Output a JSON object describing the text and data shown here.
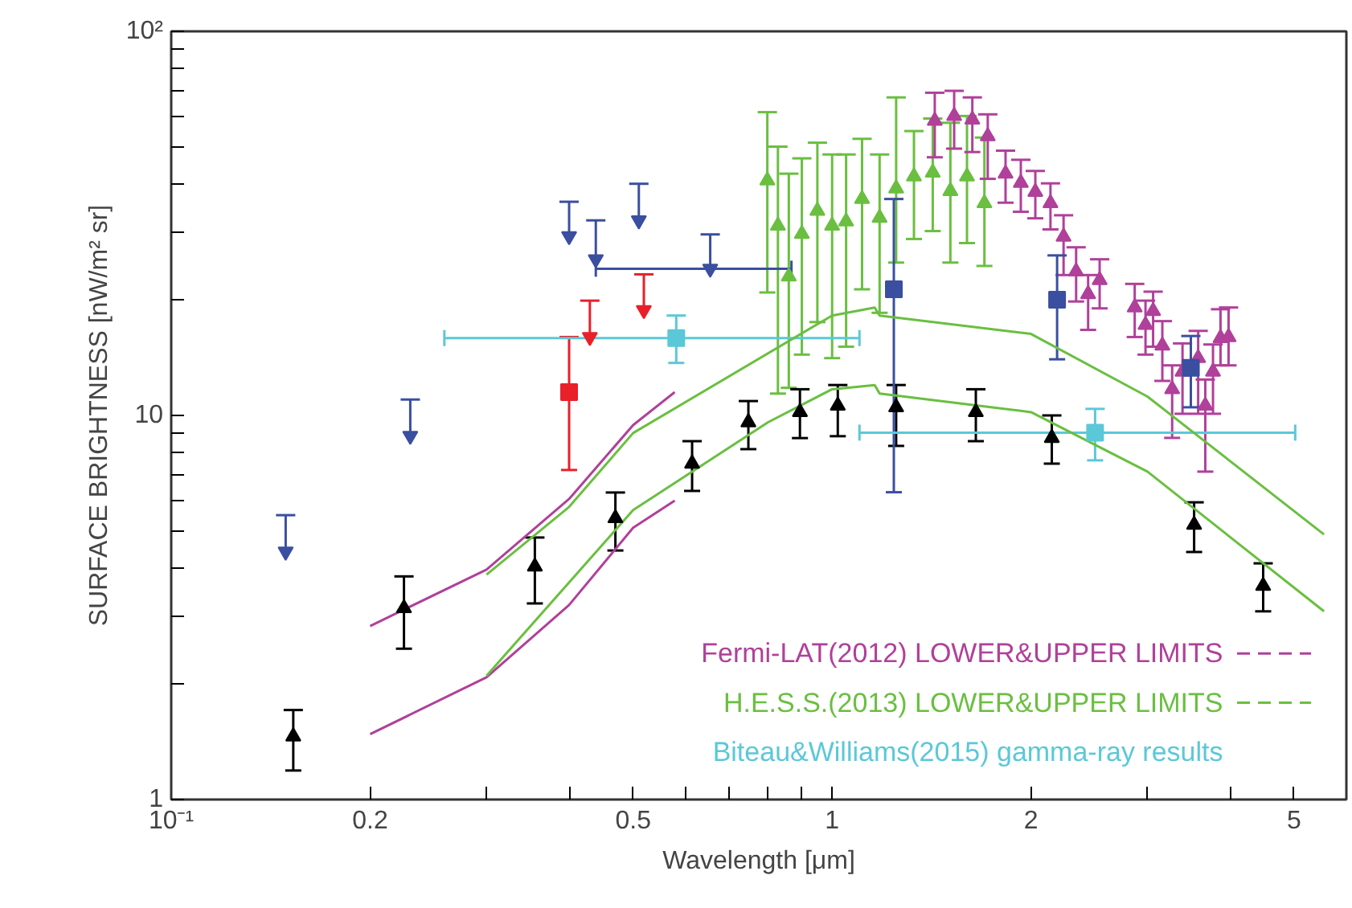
{
  "chart_data": {
    "type": "scatter",
    "xlabel": "Wavelength [μm]",
    "ylabel": "SURFACE BRIGHTNESS [nW/m² sr]",
    "log": "xy",
    "xlim": [
      0.1,
      6
    ],
    "ylim": [
      1,
      100
    ],
    "xticks": [
      {
        "value": 0.1,
        "label": "10⁻¹"
      },
      0.2,
      {
        "value": 0.3,
        "label": null
      },
      {
        "value": 0.4,
        "label": null
      },
      0.5,
      {
        "value": 0.6,
        "label": null
      },
      {
        "value": 0.7,
        "label": null
      },
      {
        "value": 0.8,
        "label": null
      },
      {
        "value": 0.9,
        "label": null
      },
      1,
      2,
      {
        "value": 3,
        "label": null
      },
      {
        "value": 4,
        "label": null
      },
      5
    ],
    "yticks": [
      1,
      {
        "value": 2,
        "label": null
      },
      {
        "value": 3,
        "label": null
      },
      {
        "value": 4,
        "label": null
      },
      {
        "value": 5,
        "label": null
      },
      {
        "value": 6,
        "label": null
      },
      {
        "value": 7,
        "label": null
      },
      {
        "value": 8,
        "label": null
      },
      {
        "value": 9,
        "label": null
      },
      10,
      {
        "value": 20,
        "label": null
      },
      {
        "value": 30,
        "label": null
      },
      {
        "value": 40,
        "label": null
      },
      {
        "value": 50,
        "label": null
      },
      {
        "value": 60,
        "label": null
      },
      {
        "value": 70,
        "label": null
      },
      {
        "value": 80,
        "label": null
      },
      {
        "value": 90,
        "label": null
      },
      {
        "value": 100,
        "label": "10²"
      }
    ],
    "grid": false,
    "legend": "bottom right",
    "series": [
      {
        "name": "Fermi-LAT(2012) LOWER&UPPER LIMITS",
        "type": "line",
        "color": "#b0409a",
        "x": [
          0.2,
          0.3,
          0.4,
          0.5,
          0.578
        ],
        "values": [
          1.48,
          2.08,
          3.21,
          5.1,
          6.0
        ]
      },
      {
        "type": "line",
        "color": "#b0409a",
        "x": [
          0.2,
          0.3,
          0.4,
          0.5,
          0.578
        ],
        "values": [
          2.83,
          3.97,
          6.06,
          9.44,
          11.5
        ]
      },
      {
        "name": "H.E.S.S.(2013) LOWER&UPPER LIMITS",
        "type": "line",
        "color": "#6abf40",
        "x": [
          0.3,
          0.5,
          0.8,
          1,
          1.16,
          1.18,
          2,
          3,
          5.55
        ],
        "values": [
          2.1,
          5.67,
          9.6,
          11.7,
          12.0,
          11.4,
          10.2,
          7.14,
          3.09
        ]
      },
      {
        "type": "line",
        "color": "#6abf40",
        "x": [
          0.3,
          0.4,
          0.5,
          1,
          1.16,
          1.18,
          2,
          3,
          5.55
        ],
        "values": [
          3.85,
          5.78,
          9.0,
          18.2,
          19.1,
          18.2,
          16.3,
          11.2,
          4.9
        ]
      },
      {
        "marker": "triangle",
        "color": "#6abf40",
        "x": [
          0.798,
          0.828,
          0.86,
          0.9,
          0.95,
          1.0,
          1.05,
          1.11,
          1.18,
          1.25,
          1.33,
          1.42,
          1.51,
          1.6,
          1.7
        ],
        "values": [
          40.9,
          31.2,
          23.0,
          29.7,
          34.1,
          31.2,
          32.0,
          36.6,
          32.7,
          39.0,
          41.9,
          42.9,
          38.4,
          41.9,
          35.7
        ],
        "errors": [
          [
            20.9,
            61.6
          ],
          [
            11.4,
            50.1
          ],
          [
            11.8,
            42.6
          ],
          [
            14.4,
            46.7
          ],
          [
            17.5,
            51.3
          ],
          [
            14.1,
            47.8
          ],
          [
            15.1,
            47.8
          ],
          [
            21.3,
            52.5
          ],
          [
            18.5,
            47.8
          ],
          [
            25.0,
            67.3
          ],
          [
            28.8,
            55.0
          ],
          [
            30.2,
            59.3
          ],
          [
            25.0,
            57.8
          ],
          [
            28.1,
            60.2
          ],
          [
            24.5,
            52.9
          ]
        ]
      },
      {
        "marker": "triangle",
        "color": "#b0409a",
        "x": [
          1.43,
          1.53,
          1.63,
          1.72,
          1.83,
          1.93,
          2.03,
          2.14,
          2.24,
          2.34,
          2.44,
          2.54,
          2.87,
          2.98,
          3.06,
          3.16,
          3.27,
          3.39,
          3.58,
          3.67,
          3.77,
          3.87,
          3.98
        ],
        "values": [
          58.5,
          60.2,
          58.9,
          53.3,
          42.6,
          40.3,
          38.2,
          35.7,
          29.2,
          23.7,
          20.7,
          22.5,
          19.1,
          17.2,
          18.7,
          15.2,
          11.7,
          13.0,
          14.1,
          10.6,
          13.0,
          15.9,
          16.0
        ],
        "errors": [
          [
            47.0,
            69.2
          ],
          [
            49.5,
            70.0
          ],
          [
            48.5,
            67.3
          ],
          [
            41.3,
            60.8
          ],
          [
            35.8,
            48.9
          ],
          [
            33.9,
            46.3
          ],
          [
            32.6,
            43.3
          ],
          [
            30.5,
            40.2
          ],
          [
            23.2,
            33.2
          ],
          [
            19.8,
            27.4
          ],
          [
            16.7,
            23.2
          ],
          [
            19.0,
            25.5
          ],
          [
            16.0,
            22.0
          ],
          [
            14.4,
            19.9
          ],
          [
            15.1,
            21.0
          ],
          [
            12.3,
            17.6
          ],
          [
            8.74,
            13.5
          ],
          [
            10.1,
            15.4
          ],
          [
            10.1,
            16.6
          ],
          [
            7.14,
            12.4
          ],
          [
            10.1,
            15.3
          ],
          [
            13.5,
            18.9
          ],
          [
            13.5,
            19.1
          ]
        ]
      },
      {
        "marker": "triangle",
        "color": "#000000",
        "x": [
          0.153,
          0.225,
          0.355,
          0.47,
          0.614,
          0.747,
          0.894,
          1.02,
          1.25,
          1.65,
          2.15,
          3.53,
          4.49
        ],
        "values": [
          1.46,
          3.15,
          4.04,
          5.4,
          7.49,
          9.6,
          10.2,
          10.6,
          10.5,
          10.2,
          8.74,
          5.19,
          3.6
        ],
        "errors": [
          [
            1.19,
            1.71
          ],
          [
            2.47,
            3.81
          ],
          [
            3.24,
            4.81
          ],
          [
            4.45,
            6.3
          ],
          [
            6.36,
            8.57
          ],
          [
            8.17,
            10.9
          ],
          [
            8.73,
            11.7
          ],
          [
            8.83,
            12.0
          ],
          [
            8.33,
            12.0
          ],
          [
            8.57,
            11.7
          ],
          [
            7.49,
            10.0
          ],
          [
            4.41,
            5.94
          ],
          [
            3.09,
            4.12
          ]
        ]
      },
      {
        "marker": "square",
        "color": "#3a4fa0",
        "x": [
          1.24,
          2.19,
          3.49
        ],
        "values": [
          21.3,
          20.0,
          13.3
        ],
        "errors": [
          [
            6.31,
            36.6
          ],
          [
            14.0,
            26.1
          ],
          [
            10.5,
            16.1
          ]
        ]
      },
      {
        "marker": "triangle",
        "color": "#3a4fa0",
        "x": [
          0.149,
          0.23,
          0.4,
          0.439,
          0.51,
          0.654
        ],
        "values": [
          4.42,
          8.85,
          29.3,
          25.5,
          32.2,
          24.1
        ],
        "errors": [
          [
            4.42,
            5.5
          ],
          [
            8.85,
            11.0
          ],
          [
            29.3,
            36.0
          ],
          [
            25.5,
            32.2
          ],
          [
            32.2,
            40.1
          ],
          [
            24.1,
            29.6
          ]
        ],
        "xerrors": [
          null,
          null,
          null,
          null,
          null,
          [
            0.439,
            0.868
          ]
        ]
      },
      {
        "marker": "triangle",
        "color": "#e8202a",
        "x": [
          0.43,
          0.519
        ],
        "values": [
          16.0,
          18.8
        ],
        "errors": [
          [
            16.0,
            19.9
          ],
          [
            18.8,
            23.3
          ]
        ]
      },
      {
        "marker": "square",
        "color": "#e8202a",
        "x": [
          0.4
        ],
        "values": [
          11.5
        ],
        "errors": [
          [
            7.21,
            16.0
          ]
        ]
      },
      {
        "name": "Biteau&Williams(2015) gamma-ray results",
        "marker": "square",
        "color": "#5bc8d8",
        "x": [
          0.581,
          2.5
        ],
        "values": [
          15.9,
          9.02
        ],
        "errors": [
          [
            13.7,
            18.2
          ],
          [
            7.64,
            10.4
          ]
        ],
        "xerrors": [
          [
            0.259,
            1.1
          ],
          [
            1.1,
            5.02
          ]
        ]
      }
    ]
  }
}
